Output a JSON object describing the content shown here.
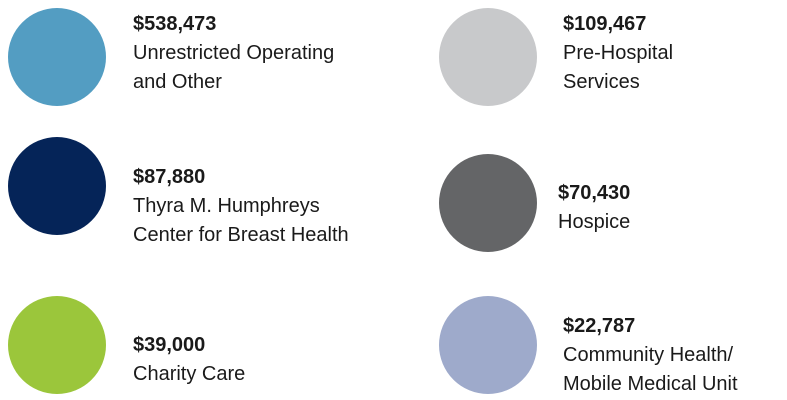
{
  "items": [
    {
      "amount": "$538,473",
      "label_lines": [
        "Unrestricted Operating",
        "and Other"
      ],
      "color": "#539dc2"
    },
    {
      "amount": "$109,467",
      "label_lines": [
        "Pre-Hospital",
        "Services"
      ],
      "color": "#c8c9cb"
    },
    {
      "amount": "$87,880",
      "label_lines": [
        "Thyra M. Humphreys",
        "Center for Breast Health"
      ],
      "color": "#052458"
    },
    {
      "amount": "$70,430",
      "label_lines": [
        "Hospice"
      ],
      "color": "#646567"
    },
    {
      "amount": "$39,000",
      "label_lines": [
        "Charity Care"
      ],
      "color": "#9bc63b"
    },
    {
      "amount": "$22,787",
      "label_lines": [
        "Community Health/",
        "Mobile Medical Unit"
      ],
      "color": "#9eaacb"
    }
  ]
}
